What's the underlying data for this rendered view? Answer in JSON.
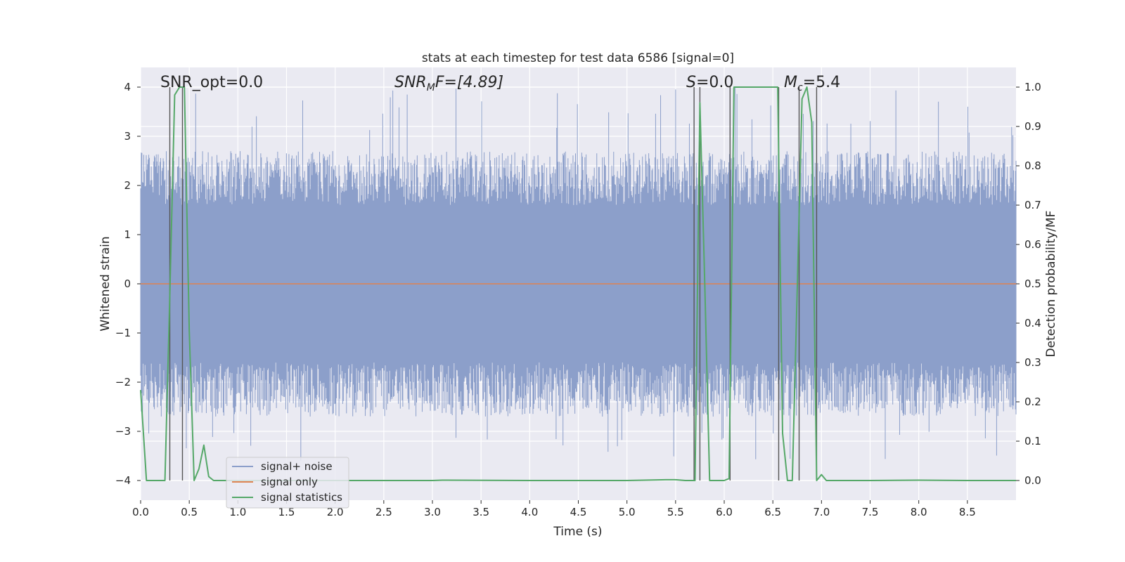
{
  "chart_data": {
    "type": "line",
    "title": "stats at each timestep for test data 6586 [signal=0]",
    "xlabel": "Time (s)",
    "ylabel_left": "Whitened strain",
    "ylabel_right": "Detection probability/MF",
    "xlim": [
      0.0,
      9.0
    ],
    "ylim_left": [
      -4.4,
      4.4
    ],
    "ylim_right": [
      -0.05,
      1.05
    ],
    "xticks": [
      "0.0",
      "0.5",
      "1.0",
      "1.5",
      "2.0",
      "2.5",
      "3.0",
      "3.5",
      "4.0",
      "4.5",
      "5.0",
      "5.5",
      "6.0",
      "6.5",
      "7.0",
      "7.5",
      "8.0",
      "8.5"
    ],
    "yticks_left": [
      "−4",
      "−3",
      "−2",
      "−1",
      "0",
      "1",
      "2",
      "3",
      "4"
    ],
    "yticks_right": [
      "0.0",
      "0.1",
      "0.2",
      "0.3",
      "0.4",
      "0.5",
      "0.6",
      "0.7",
      "0.8",
      "0.9",
      "1.0"
    ],
    "colors": {
      "noise": "#8c9fca",
      "signal": "#dd8452",
      "stats": "#55a868",
      "vlines": "#555555",
      "axes_bg": "#eaeaf2",
      "grid": "#ffffff"
    },
    "annotations": {
      "snr_opt": "SNR_opt=0.0",
      "snr_mf_main": "SNR",
      "snr_mf_sub": "M",
      "snr_mf_rest": "F=[4.89]",
      "s_main": "S",
      "s_rest": "=0.0",
      "mc_main": "M",
      "mc_sub": "c",
      "mc_rest": "=5.4"
    },
    "legend": {
      "position": "lower-left",
      "entries": [
        "signal+ noise",
        "signal only",
        "signal statistics"
      ]
    },
    "series": [
      {
        "name": "signal+ noise",
        "axis": "left",
        "description_stats": {
          "core_amplitude": 1.6,
          "max_peak": 4.0,
          "min_peak": -3.6
        }
      },
      {
        "name": "signal only",
        "axis": "left",
        "x": [
          0.0,
          9.0
        ],
        "y": [
          0.0,
          0.0
        ]
      },
      {
        "name": "signal statistics",
        "axis": "right",
        "x": [
          0.0,
          0.06,
          0.1,
          0.15,
          0.2,
          0.25,
          0.3,
          0.35,
          0.4,
          0.45,
          0.5,
          0.55,
          0.6,
          0.65,
          0.7,
          0.75,
          0.8,
          0.85,
          0.9,
          1.0,
          2.0,
          3.0,
          3.1,
          4.0,
          5.0,
          5.4,
          5.5,
          5.6,
          5.65,
          5.7,
          5.75,
          5.8,
          5.85,
          5.9,
          6.0,
          6.05,
          6.1,
          6.15,
          6.2,
          6.55,
          6.6,
          6.65,
          6.7,
          6.75,
          6.8,
          6.85,
          6.9,
          6.95,
          7.0,
          7.05,
          7.5,
          8.0,
          8.5,
          9.0
        ],
        "y": [
          0.23,
          0.0,
          0.0,
          0.0,
          0.0,
          0.0,
          0.47,
          0.98,
          1.0,
          1.0,
          0.38,
          0.0,
          0.03,
          0.09,
          0.01,
          0.0,
          0.0,
          0.0,
          0.0,
          0.0,
          0.0,
          0.0,
          0.001,
          0.0,
          0.0,
          0.002,
          0.002,
          0.0,
          0.0,
          0.0,
          0.96,
          0.5,
          0.0,
          0.0,
          0.0,
          0.005,
          1.0,
          1.0,
          1.0,
          1.0,
          0.12,
          0.0,
          0.0,
          0.48,
          0.97,
          1.0,
          0.91,
          0.0,
          0.015,
          0.0,
          0.0,
          0.001,
          0.0,
          0.0
        ]
      }
    ],
    "vlines_x": [
      0.3,
      0.43,
      5.69,
      5.75,
      6.06,
      6.56,
      6.77,
      6.95
    ]
  }
}
